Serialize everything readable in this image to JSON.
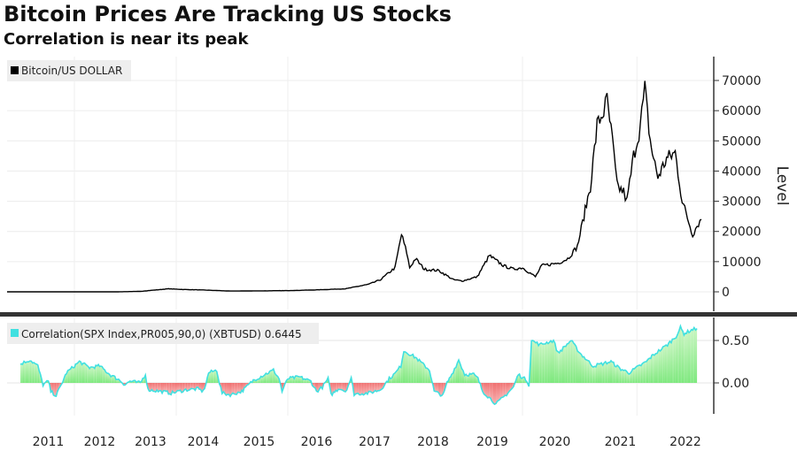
{
  "title": "Bitcoin Prices Are Tracking US Stocks",
  "subtitle": "Correlation is near its peak",
  "chart_data": [
    {
      "type": "line",
      "legend": "Bitcoin/US DOLLAR",
      "legend_placement": "top-left",
      "ylabel": "Level",
      "ylim": [
        -3000,
        72000
      ],
      "yticks": [
        "0",
        "10000",
        "20000",
        "30000",
        "40000",
        "50000",
        "60000",
        "70000"
      ],
      "ytick_values": [
        0,
        10000,
        20000,
        30000,
        40000,
        50000,
        60000,
        70000
      ],
      "color": "#000000",
      "x": [
        2010.55,
        2012.9,
        2013.3,
        2013.85,
        2014.1,
        2014.5,
        2015.0,
        2016.0,
        2016.5,
        2017.0,
        2017.4,
        2017.6,
        2017.85,
        2017.96,
        2018.05,
        2018.1,
        2018.2,
        2018.35,
        2018.6,
        2018.85,
        2019.0,
        2019.25,
        2019.45,
        2019.55,
        2019.7,
        2019.85,
        2020.0,
        2020.2,
        2020.3,
        2020.55,
        2020.7,
        2020.85,
        2020.95,
        2021.05,
        2021.15,
        2021.25,
        2021.3,
        2021.38,
        2021.45,
        2021.55,
        2021.6,
        2021.7,
        2021.8,
        2021.87,
        2021.95,
        2022.05,
        2022.15,
        2022.25,
        2022.33,
        2022.45,
        2022.5,
        2022.55
      ],
      "y": [
        0,
        15,
        150,
        1000,
        800,
        600,
        250,
        400,
        650,
        1000,
        2500,
        4000,
        8000,
        19000,
        13000,
        8000,
        11000,
        7500,
        7000,
        4000,
        3600,
        5000,
        12000,
        10500,
        8500,
        7500,
        8000,
        5000,
        8700,
        9500,
        11000,
        15000,
        25000,
        35000,
        55000,
        60000,
        63000,
        50000,
        35000,
        33000,
        30000,
        45000,
        55000,
        67000,
        50000,
        38000,
        44000,
        46000,
        30000,
        19000,
        22000,
        24000
      ]
    },
    {
      "type": "area",
      "legend": "Correlation(SPX Index,PR005,90,0) (XBTUSD) 0.6445",
      "legend_placement": "top-left",
      "ylim": [
        -0.35,
        0.75
      ],
      "yticks": [
        "0.00",
        "0.50"
      ],
      "ytick_values": [
        0,
        0.5
      ],
      "line_color": "#40e0e0",
      "positive_fill": "#7de87d",
      "negative_fill": "#f08080",
      "x": [
        2010.95,
        2011.15,
        2011.3,
        2011.4,
        2011.5,
        2011.55,
        2011.65,
        2011.75,
        2011.85,
        2012.0,
        2012.1,
        2012.3,
        2012.5,
        2012.7,
        2012.9,
        2013.0,
        2013.1,
        2013.3,
        2013.4,
        2013.45,
        2013.7,
        2013.9,
        2014.2,
        2014.4,
        2014.5,
        2014.55,
        2014.6,
        2014.75,
        2014.8,
        2014.85,
        2015.0,
        2015.2,
        2015.4,
        2015.6,
        2015.75,
        2015.85,
        2015.9,
        2016.0,
        2016.2,
        2016.4,
        2016.5,
        2016.6,
        2016.7,
        2016.75,
        2016.9,
        2017.0,
        2017.1,
        2017.15,
        2017.4,
        2017.6,
        2017.75,
        2017.85,
        2017.95,
        2018.0,
        2018.2,
        2018.44,
        2018.52,
        2018.67,
        2018.74,
        2018.82,
        2018.94,
        2019.04,
        2019.19,
        2019.26,
        2019.34,
        2019.49,
        2019.56,
        2019.71,
        2019.85,
        2019.93,
        2020.07,
        2020.1,
        2020.14,
        2020.27,
        2020.48,
        2020.55,
        2020.75,
        2020.89,
        2021.09,
        2021.36,
        2021.49,
        2021.63,
        2021.89,
        2022.16,
        2022.26,
        2022.31,
        2022.35,
        2022.45,
        2022.5
      ],
      "y": [
        0.22,
        0.27,
        0.2,
        -0.02,
        0.02,
        -0.1,
        -0.15,
        -0.02,
        0.12,
        0.2,
        0.25,
        0.18,
        0.2,
        0.1,
        0.03,
        -0.02,
        0.02,
        0.0,
        0.1,
        -0.08,
        -0.1,
        -0.12,
        -0.08,
        -0.07,
        -0.1,
        -0.01,
        0.12,
        0.15,
        0.0,
        -0.12,
        -0.14,
        -0.1,
        0.03,
        0.1,
        0.15,
        0.05,
        -0.1,
        0.05,
        0.07,
        0.02,
        -0.1,
        -0.05,
        0.05,
        -0.14,
        -0.06,
        -0.1,
        0.05,
        -0.13,
        -0.12,
        -0.08,
        0.05,
        0.11,
        0.2,
        0.38,
        0.3,
        0.15,
        -0.1,
        -0.15,
        0.0,
        0.1,
        0.27,
        0.1,
        0.1,
        0.05,
        -0.1,
        -0.2,
        -0.25,
        -0.15,
        -0.05,
        0.1,
        0.03,
        -0.03,
        0.5,
        0.45,
        0.5,
        0.35,
        0.5,
        0.35,
        0.2,
        0.25,
        0.17,
        0.12,
        0.25,
        0.45,
        0.55,
        0.65,
        0.58,
        0.63,
        0.64
      ]
    }
  ],
  "x_tick_labels": [
    "2011",
    "2012",
    "2013",
    "2014",
    "2015",
    "2016",
    "2017",
    "2018",
    "2019",
    "2020",
    "2021",
    "2022"
  ]
}
